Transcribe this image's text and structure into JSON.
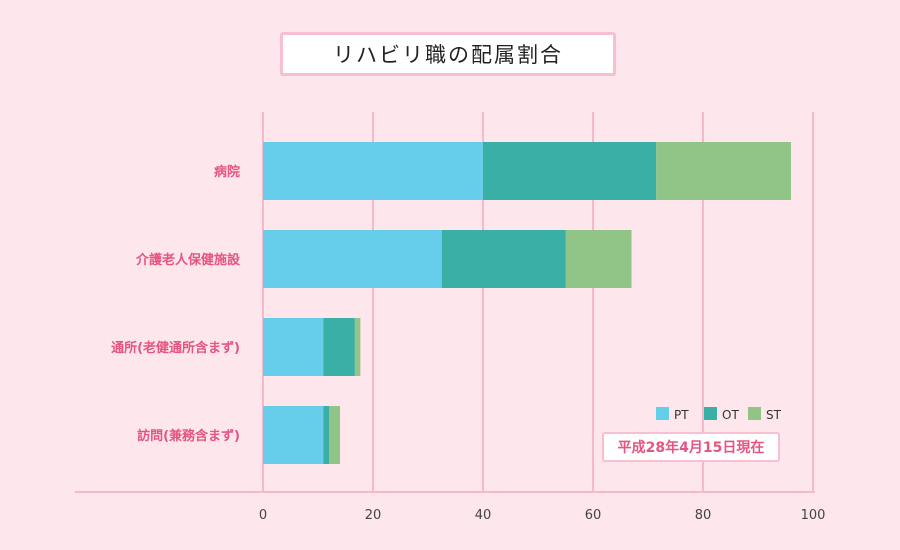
{
  "title": "リハビリ職の配属割合",
  "note": "平成28年4月15日現在",
  "colors": {
    "background": "#fde6ec",
    "grid": "#f6b9cc",
    "category_label": "#e5557f",
    "PT": "#66cdea",
    "OT": "#3aafa6",
    "ST": "#90c587"
  },
  "chart_data": {
    "type": "bar",
    "orientation": "horizontal",
    "stacked": true,
    "categories": [
      "病院",
      "介護老人保健施設",
      "通所(老健通所含まず)",
      "訪問(兼務含まず)"
    ],
    "series": [
      {
        "name": "PT",
        "values": [
          40,
          32.5,
          11,
          11
        ]
      },
      {
        "name": "OT",
        "values": [
          31.5,
          22.5,
          5.7,
          1
        ]
      },
      {
        "name": "ST",
        "values": [
          24.5,
          12,
          1,
          2
        ]
      }
    ],
    "xlim": [
      0,
      100
    ],
    "xticks": [
      0,
      20,
      40,
      60,
      80,
      100
    ],
    "grid": true,
    "legend": "bottom-right",
    "title": "リハビリ職の配属割合"
  }
}
